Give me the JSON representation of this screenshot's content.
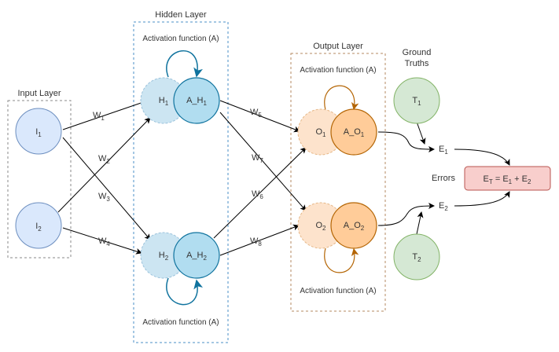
{
  "colors": {
    "input_fill": "#dae8fc",
    "input_stroke": "#6c8ebf",
    "hidden_fill": "#b1ddf0",
    "hidden_stroke": "#10739e",
    "hidden_pre_fill": "#cce5f2",
    "hidden_pre_stroke": "#9cc3dc",
    "output_fill": "#ffcc99",
    "output_stroke": "#b46504",
    "output_pre_fill": "#fde3cc",
    "output_pre_stroke": "#e6b888",
    "truth_fill": "#d5e8d4",
    "truth_stroke": "#82b366",
    "error_fill": "#f8cecc",
    "error_stroke": "#b85450",
    "hidden_box": "#4a8fc7",
    "output_box": "#b48a60",
    "input_box": "#8a8a8a"
  },
  "layers": {
    "input": "Input Layer",
    "hidden": "Hidden Layer",
    "output": "Output Layer",
    "ground_truths_1": "Ground",
    "ground_truths_2": "Truths"
  },
  "activation_label": "Activation function (A)",
  "nodes": {
    "i1": {
      "main": "I",
      "sub": "1"
    },
    "i2": {
      "main": "I",
      "sub": "2"
    },
    "h1": {
      "main": "H",
      "sub": "1"
    },
    "h2": {
      "main": "H",
      "sub": "2"
    },
    "ah1": {
      "main": "A_H",
      "sub": "1"
    },
    "ah2": {
      "main": "A_H",
      "sub": "2"
    },
    "o1": {
      "main": "O",
      "sub": "1"
    },
    "o2": {
      "main": "O",
      "sub": "2"
    },
    "ao1": {
      "main": "A_O",
      "sub": "1"
    },
    "ao2": {
      "main": "A_O",
      "sub": "2"
    },
    "t1": {
      "main": "T",
      "sub": "1"
    },
    "t2": {
      "main": "T",
      "sub": "2"
    }
  },
  "weights": {
    "w1": {
      "main": "W",
      "sub": "1"
    },
    "w2": {
      "main": "W",
      "sub": "2"
    },
    "w3": {
      "main": "W",
      "sub": "3"
    },
    "w4": {
      "main": "W",
      "sub": "4"
    },
    "w5": {
      "main": "W",
      "sub": "5"
    },
    "w6": {
      "main": "W",
      "sub": "6"
    },
    "w7": {
      "main": "W",
      "sub": "7"
    },
    "w8": {
      "main": "W",
      "sub": "8"
    }
  },
  "errors": {
    "e1": {
      "main": "E",
      "sub": "1"
    },
    "e2": {
      "main": "E",
      "sub": "2"
    },
    "label": "Errors",
    "total": {
      "et": "E",
      "et_sub": "T",
      "eq": " = ",
      "e1": "E",
      "e1_sub": "1",
      "plus": " + ",
      "e2": "E",
      "e2_sub": "2"
    }
  }
}
